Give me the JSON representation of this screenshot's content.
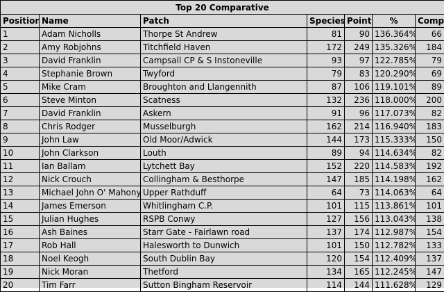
{
  "title": "Top 20 Comparative",
  "columns": {
    "position": "Position",
    "name": "Name",
    "patch": "Patch",
    "species": "Species",
    "points": "Points",
    "pct": "%",
    "comp": "Comp"
  },
  "rows": [
    {
      "position": "1",
      "name": "Adam Nicholls",
      "patch": "Thorpe St Andrew",
      "species": "81",
      "points": "90",
      "pct": "136.364%",
      "comp": "66"
    },
    {
      "position": "2",
      "name": "Amy Robjohns",
      "patch": "Titchfield Haven",
      "species": "172",
      "points": "249",
      "pct": "135.326%",
      "comp": "184"
    },
    {
      "position": "3",
      "name": "David Franklin",
      "patch": "Campsall CP & S Instoneville",
      "species": "93",
      "points": "97",
      "pct": "122.785%",
      "comp": "79"
    },
    {
      "position": "4",
      "name": "Stephanie Brown",
      "patch": "Twyford",
      "species": "79",
      "points": "83",
      "pct": "120.290%",
      "comp": "69"
    },
    {
      "position": "5",
      "name": "Mike Cram",
      "patch": "Broughton and Llangennith",
      "species": "87",
      "points": "106",
      "pct": "119.101%",
      "comp": "89"
    },
    {
      "position": "6",
      "name": "Steve Minton",
      "patch": "Scatness",
      "species": "132",
      "points": "236",
      "pct": "118.000%",
      "comp": "200"
    },
    {
      "position": "7",
      "name": "David Franklin",
      "patch": "Askern",
      "species": "91",
      "points": "96",
      "pct": "117.073%",
      "comp": "82"
    },
    {
      "position": "8",
      "name": "Chris Rodger",
      "patch": "Musselburgh",
      "species": "162",
      "points": "214",
      "pct": "116.940%",
      "comp": "183"
    },
    {
      "position": "9",
      "name": "John Law",
      "patch": "Old Moor/Adwick",
      "species": "144",
      "points": "173",
      "pct": "115.333%",
      "comp": "150"
    },
    {
      "position": "10",
      "name": "John Clarkson",
      "patch": "Louth",
      "species": "89",
      "points": "94",
      "pct": "114.634%",
      "comp": "82"
    },
    {
      "position": "11",
      "name": "Ian Ballam",
      "patch": "Lytchett Bay",
      "species": "152",
      "points": "220",
      "pct": "114.583%",
      "comp": "192"
    },
    {
      "position": "12",
      "name": "Nick Crouch",
      "patch": "Collingham & Besthorpe",
      "species": "147",
      "points": "185",
      "pct": "114.198%",
      "comp": "162"
    },
    {
      "position": "13",
      "name": "Michael John O' Mahony",
      "patch": "Upper Rathduff",
      "species": "64",
      "points": "73",
      "pct": "114.063%",
      "comp": "64"
    },
    {
      "position": "14",
      "name": "James Emerson",
      "patch": "Whitlingham C.P.",
      "species": "101",
      "points": "115",
      "pct": "113.861%",
      "comp": "101"
    },
    {
      "position": "15",
      "name": "Julian Hughes",
      "patch": "RSPB Conwy",
      "species": "127",
      "points": "156",
      "pct": "113.043%",
      "comp": "138"
    },
    {
      "position": "16",
      "name": "Ash Baines",
      "patch": "Starr Gate - Fairlawn road",
      "species": "137",
      "points": "174",
      "pct": "112.987%",
      "comp": "154"
    },
    {
      "position": "17",
      "name": "Rob Hall",
      "patch": "Halesworth to Dunwich",
      "species": "101",
      "points": "150",
      "pct": "112.782%",
      "comp": "133"
    },
    {
      "position": "18",
      "name": "Noel Keogh",
      "patch": "South Dublin Bay",
      "species": "120",
      "points": "154",
      "pct": "112.409%",
      "comp": "137"
    },
    {
      "position": "19",
      "name": "Nick Moran",
      "patch": "Thetford",
      "species": "134",
      "points": "165",
      "pct": "112.245%",
      "comp": "147"
    },
    {
      "position": "20",
      "name": "Tim Farr",
      "patch": "Sutton Bingham Reservoir",
      "species": "114",
      "points": "144",
      "pct": "111.628%",
      "comp": "129"
    }
  ]
}
